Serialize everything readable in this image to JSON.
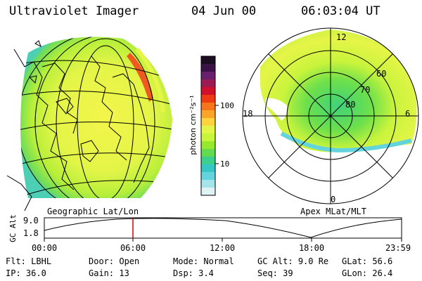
{
  "header": {
    "title": "Ultraviolet Imager",
    "date": "04 Jun 00",
    "time": "06:03:04 UT"
  },
  "geo_map": {
    "caption": "Geographic Lat/Lon"
  },
  "polar_map": {
    "caption": "Apex MLat/MLT",
    "mlt_labels": [
      "12",
      "18",
      "6",
      "0"
    ],
    "lat_labels": [
      "60",
      "70",
      "80"
    ]
  },
  "colorbar": {
    "label": "photon cm⁻²s⁻¹",
    "ticks": [
      "100",
      "10"
    ],
    "colors": [
      "#1a0d1f",
      "#3b1248",
      "#6a1f6e",
      "#9b1b52",
      "#d0102a",
      "#ee3a15",
      "#f7741a",
      "#fba42a",
      "#fdd43e",
      "#e2f548",
      "#c8f53a",
      "#96e82c",
      "#63db4e",
      "#3cd08f",
      "#34c7c3",
      "#63d4de",
      "#a6e4ec",
      "#dff2f4"
    ]
  },
  "altitude_strip": {
    "ylabel": "GC Alt",
    "ymax": "9.0",
    "ymin": "1.8",
    "xticks": [
      "00:00",
      "06:00",
      "12:00",
      "18:00",
      "23:59"
    ]
  },
  "status": {
    "row1": [
      {
        "key": "Flt:",
        "value": "LBHL"
      },
      {
        "key": "Door:",
        "value": "Open"
      },
      {
        "key": "Mode:",
        "value": "Normal"
      },
      {
        "key": "GC Alt:",
        "value": "9.0 Re"
      },
      {
        "key": "GLat:",
        "value": "56.6"
      }
    ],
    "row2": [
      {
        "key": "IP:",
        "value": "36.0"
      },
      {
        "key": "Gain:",
        "value": "13"
      },
      {
        "key": "Dsp:",
        "value": "3.4"
      },
      {
        "key": "Seq:",
        "value": "39"
      },
      {
        "key": "GLon:",
        "value": "26.4"
      }
    ]
  }
}
